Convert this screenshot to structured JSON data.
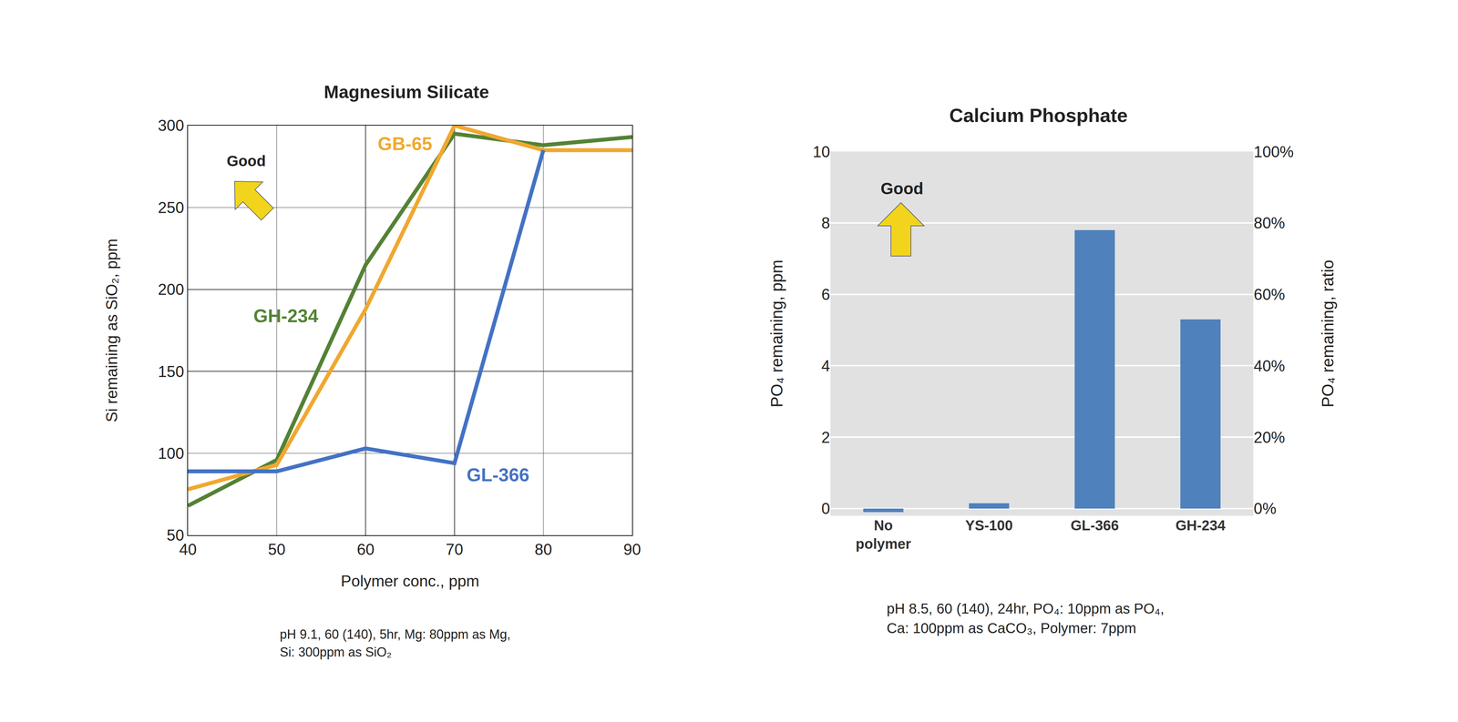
{
  "chart_data": [
    {
      "type": "line",
      "title": "Magnesium Silicate",
      "xlabel": "Polymer conc., ppm",
      "ylabel": "Si remaining as SiO₂, ppm",
      "x": [
        40,
        50,
        60,
        70,
        80,
        90
      ],
      "series": [
        {
          "name": "GH-234",
          "color": "#548235",
          "values": [
            68,
            96,
            215,
            295,
            288,
            293
          ]
        },
        {
          "name": "GB-65",
          "color": "#f0a830",
          "values": [
            78,
            93,
            188,
            300,
            285,
            285
          ]
        },
        {
          "name": "GL-366",
          "color": "#4472c4",
          "values": [
            89,
            89,
            103,
            94,
            285,
            null
          ]
        }
      ],
      "xlim": [
        40,
        90
      ],
      "xticks": [
        40,
        50,
        60,
        70,
        80,
        90
      ],
      "ylim": [
        50,
        300
      ],
      "yticks": [
        50,
        100,
        150,
        200,
        250,
        300
      ],
      "grid": true,
      "annotations": [
        "Good"
      ],
      "caption": [
        "pH 9.1, 60 (140), 5hr, Mg: 80ppm as Mg,",
        "Si: 300ppm as SiO₂"
      ]
    },
    {
      "type": "bar",
      "title": "Calcium Phosphate",
      "ylabel": "PO₄ remaining, ppm",
      "y2label": "PO₄ remaining, ratio",
      "categories": [
        "No polymer",
        "YS-100",
        "GL-366",
        "GH-234"
      ],
      "values": [
        -0.1,
        0.15,
        7.8,
        5.3
      ],
      "color": "#4f81bd",
      "ylim": [
        -0.2,
        10
      ],
      "yticks": [
        0,
        2,
        4,
        6,
        8,
        10
      ],
      "y2lim": [
        -2,
        100
      ],
      "y2ticks": [
        {
          "value": 0,
          "label": "0%"
        },
        {
          "value": 20,
          "label": "20%"
        },
        {
          "value": 40,
          "label": "40%"
        },
        {
          "value": 60,
          "label": "60%"
        },
        {
          "value": 80,
          "label": "80%"
        },
        {
          "value": 100,
          "label": "100%"
        }
      ],
      "grid": true,
      "annotations": [
        "Good"
      ],
      "caption": [
        "pH 8.5, 60 (140), 24hr, PO₄: 10ppm as PO₄,",
        "Ca: 100ppm as CaCO₃, Polymer: 7ppm"
      ]
    }
  ]
}
